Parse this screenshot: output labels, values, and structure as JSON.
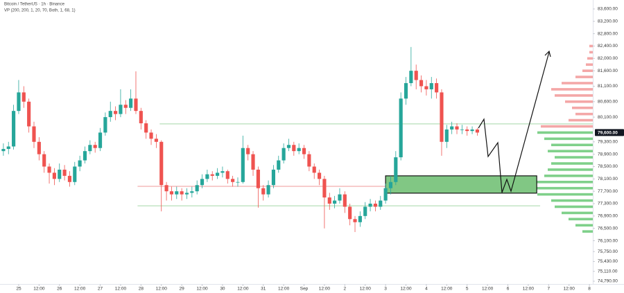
{
  "chart_data": {
    "type": "candlestick",
    "title": "Bitcoin / TetherUS · 1h · Binance",
    "subtitle": "VP (200, 200, 1, 20, 70, Both, 1, 68, 1)",
    "up_color": "#26a69a",
    "down_color": "#ef5350",
    "xlim": [
      -11,
      338
    ],
    "ylim": [
      74700,
      83890
    ],
    "x": [
      -9,
      -6,
      -3,
      0,
      3,
      6,
      9,
      12,
      15,
      18,
      21,
      24,
      27,
      30,
      33,
      36,
      39,
      42,
      45,
      48,
      51,
      54,
      57,
      60,
      63,
      66,
      69,
      72,
      75,
      78,
      81,
      84,
      87,
      90,
      93,
      96,
      99,
      102,
      105,
      108,
      111,
      114,
      117,
      120,
      123,
      126,
      129,
      132,
      135,
      138,
      141,
      144,
      147,
      150,
      153,
      156,
      159,
      162,
      165,
      168,
      171,
      174,
      177,
      180,
      183,
      186,
      189,
      192,
      195,
      198,
      201,
      204,
      207,
      210,
      213,
      216,
      219,
      222,
      225,
      228,
      231,
      234,
      237,
      240,
      243,
      246,
      249,
      252,
      255,
      258,
      261,
      264,
      267,
      270
    ],
    "open": [
      79000,
      79070,
      79150,
      80300,
      80900,
      80600,
      79800,
      79300,
      78900,
      78500,
      78300,
      78100,
      78400,
      78200,
      78000,
      78500,
      78700,
      79000,
      79200,
      79100,
      79600,
      80100,
      80300,
      80200,
      80500,
      80400,
      80700,
      80300,
      79900,
      79600,
      79400,
      79300,
      77900,
      77700,
      77600,
      77700,
      77600,
      77650,
      77700,
      77900,
      78100,
      78250,
      78200,
      78300,
      78350,
      78100,
      78000,
      78000,
      79100,
      78900,
      78400,
      77800,
      77600,
      77900,
      78400,
      78700,
      79100,
      79200,
      79000,
      79100,
      78900,
      78500,
      78300,
      78100,
      77500,
      77300,
      77400,
      77600,
      77200,
      76800,
      76700,
      76900,
      77200,
      77300,
      77200,
      77400,
      77800,
      78000,
      78800,
      80700,
      81200,
      81600,
      81300,
      81100,
      81000,
      81200,
      80900,
      79300,
      79700,
      79800,
      79700,
      79700,
      79650,
      79700
    ],
    "high": [
      79250,
      79300,
      80500,
      81300,
      81100,
      80700,
      79950,
      79450,
      79000,
      78600,
      78450,
      78600,
      78550,
      78350,
      78650,
      78850,
      79150,
      79350,
      79300,
      79750,
      80250,
      80600,
      80450,
      81000,
      80650,
      81000,
      81580,
      80400,
      80000,
      79700,
      79550,
      79350,
      78000,
      77850,
      77850,
      77800,
      77800,
      77850,
      78050,
      78250,
      78400,
      78350,
      78450,
      78500,
      78400,
      78200,
      78150,
      79500,
      79200,
      79000,
      78500,
      77900,
      78050,
      78550,
      78850,
      79250,
      79400,
      79300,
      79250,
      79200,
      79000,
      78600,
      78400,
      78200,
      77650,
      77550,
      77800,
      77700,
      77300,
      76900,
      77050,
      77350,
      77450,
      77400,
      77550,
      77950,
      78200,
      79000,
      80900,
      81400,
      82370,
      81800,
      81450,
      81300,
      81400,
      81350,
      81000,
      79850,
      79950,
      79900,
      79850,
      79800,
      79800,
      79750
    ],
    "low": [
      78850,
      78900,
      79050,
      80200,
      80400,
      79600,
      79100,
      78700,
      78300,
      77950,
      77900,
      78000,
      78050,
      77850,
      77900,
      78350,
      78600,
      78900,
      78950,
      79000,
      79500,
      79950,
      80000,
      80100,
      80200,
      80300,
      80200,
      79700,
      79400,
      79200,
      79100,
      77050,
      77400,
      77400,
      77450,
      77400,
      77450,
      77500,
      77600,
      77800,
      78000,
      78050,
      78100,
      78150,
      77950,
      77850,
      77850,
      77950,
      78700,
      78200,
      77170,
      77400,
      77500,
      77800,
      78300,
      78600,
      79000,
      78850,
      78900,
      78750,
      78350,
      78100,
      77900,
      76500,
      77100,
      77150,
      77300,
      77000,
      76600,
      76380,
      76550,
      76800,
      77050,
      77050,
      77100,
      77300,
      77600,
      77900,
      78700,
      80500,
      81100,
      81000,
      80900,
      80800,
      80700,
      80700,
      78850,
      79100,
      79550,
      79550,
      79550,
      79500,
      79550,
      79500
    ],
    "close": [
      79070,
      79150,
      80300,
      80900,
      80600,
      79800,
      79300,
      78900,
      78500,
      78300,
      78100,
      78400,
      78200,
      78000,
      78500,
      78700,
      79000,
      79200,
      79100,
      79600,
      80100,
      80300,
      80200,
      80500,
      80400,
      80700,
      80300,
      79900,
      79600,
      79400,
      79300,
      77900,
      77700,
      77600,
      77700,
      77600,
      77650,
      77700,
      77900,
      78100,
      78250,
      78200,
      78300,
      78350,
      78100,
      78000,
      78000,
      79100,
      78900,
      78400,
      77800,
      77600,
      77900,
      78400,
      78700,
      79100,
      79200,
      79000,
      79100,
      78900,
      78500,
      78300,
      78100,
      77500,
      77300,
      77400,
      77600,
      77200,
      76800,
      76700,
      76900,
      77200,
      77300,
      77200,
      77400,
      77800,
      78000,
      78800,
      80700,
      81200,
      81600,
      81300,
      81100,
      81000,
      81200,
      80900,
      79300,
      79700,
      79800,
      79700,
      79700,
      79650,
      79700,
      79600
    ],
    "yticks": [
      {
        "value": 83600,
        "label": "83,600.00"
      },
      {
        "value": 83200,
        "label": "83,200.00"
      },
      {
        "value": 82800,
        "label": "82,800.00"
      },
      {
        "value": 82400,
        "label": "82,400.00"
      },
      {
        "value": 82000,
        "label": "82,000.00"
      },
      {
        "value": 81600,
        "label": "81,600.00"
      },
      {
        "value": 81100,
        "label": "81,100.00"
      },
      {
        "value": 80600,
        "label": "80,600.00"
      },
      {
        "value": 80100,
        "label": "80,100.00"
      },
      {
        "value": 79300,
        "label": "79,300.00"
      },
      {
        "value": 78900,
        "label": "78,900.00"
      },
      {
        "value": 78500,
        "label": "78,500.00"
      },
      {
        "value": 78100,
        "label": "78,100.00"
      },
      {
        "value": 77700,
        "label": "77,700.00"
      },
      {
        "value": 77300,
        "label": "77,300.00"
      },
      {
        "value": 76900,
        "label": "76,900.00"
      },
      {
        "value": 76500,
        "label": "76,500.00"
      },
      {
        "value": 76100,
        "label": "76,100.00"
      },
      {
        "value": 75750,
        "label": "75,750.00"
      },
      {
        "value": 75430,
        "label": "75,430.00"
      },
      {
        "value": 75110,
        "label": "75,110.00"
      },
      {
        "value": 74790,
        "label": "74,790.00"
      }
    ],
    "last_price": {
      "value": 79600,
      "label": "79,600.00"
    },
    "xticks": [
      {
        "value": 0,
        "label": "25"
      },
      {
        "value": 12,
        "label": "12:00"
      },
      {
        "value": 24,
        "label": "26"
      },
      {
        "value": 36,
        "label": "12:00"
      },
      {
        "value": 48,
        "label": "27"
      },
      {
        "value": 60,
        "label": "12:00"
      },
      {
        "value": 72,
        "label": "28"
      },
      {
        "value": 84,
        "label": "12:00"
      },
      {
        "value": 96,
        "label": "29"
      },
      {
        "value": 108,
        "label": "12:00"
      },
      {
        "value": 120,
        "label": "30"
      },
      {
        "value": 132,
        "label": "12:00"
      },
      {
        "value": 144,
        "label": "31"
      },
      {
        "value": 156,
        "label": "12:00"
      },
      {
        "value": 168,
        "label": "Sep"
      },
      {
        "value": 180,
        "label": "12:00"
      },
      {
        "value": 192,
        "label": "2"
      },
      {
        "value": 204,
        "label": "12:00"
      },
      {
        "value": 216,
        "label": "3"
      },
      {
        "value": 228,
        "label": "12:00"
      },
      {
        "value": 240,
        "label": "4"
      },
      {
        "value": 252,
        "label": "12:00"
      },
      {
        "value": 264,
        "label": "5"
      },
      {
        "value": 276,
        "label": "12:00"
      },
      {
        "value": 288,
        "label": "6"
      },
      {
        "value": 300,
        "label": "12:00"
      },
      {
        "value": 312,
        "label": "7"
      },
      {
        "value": 324,
        "label": "12:00"
      },
      {
        "value": 336,
        "label": "8"
      }
    ],
    "levels": [
      {
        "value": 79880,
        "x_start": 83,
        "x_end": 338,
        "color": "#a5d6a7"
      },
      {
        "value": 77860,
        "x_start": 70,
        "x_end": 303,
        "color": "#ef9a9a"
      },
      {
        "value": 77230,
        "x_start": 70,
        "x_end": 307,
        "color": "#a5d6a7"
      }
    ],
    "zone": {
      "top": 78200,
      "bottom": 77640,
      "x_start": 216,
      "x_end": 305,
      "color": "#81c784"
    },
    "volume_profile": {
      "upper": {
        "color": "#f4a7a7",
        "prices": [
          82400,
          82200,
          82000,
          81800,
          81600,
          81400,
          81200,
          81000,
          80800,
          80600,
          80400,
          80200,
          80000,
          79800
        ],
        "volumes": [
          5,
          5,
          8,
          10,
          15,
          25,
          45,
          60,
          55,
          40,
          30,
          25,
          35,
          75
        ]
      },
      "lower": {
        "color": "#7fd08a",
        "prices": [
          79600,
          79400,
          79200,
          79000,
          78800,
          78600,
          78400,
          78200,
          78000,
          77800,
          77600,
          77400,
          77200,
          77000,
          76800,
          76600,
          76400
        ],
        "volumes": [
          80,
          70,
          60,
          65,
          55,
          60,
          65,
          70,
          85,
          95,
          80,
          60,
          55,
          45,
          35,
          25,
          15
        ]
      }
    }
  }
}
